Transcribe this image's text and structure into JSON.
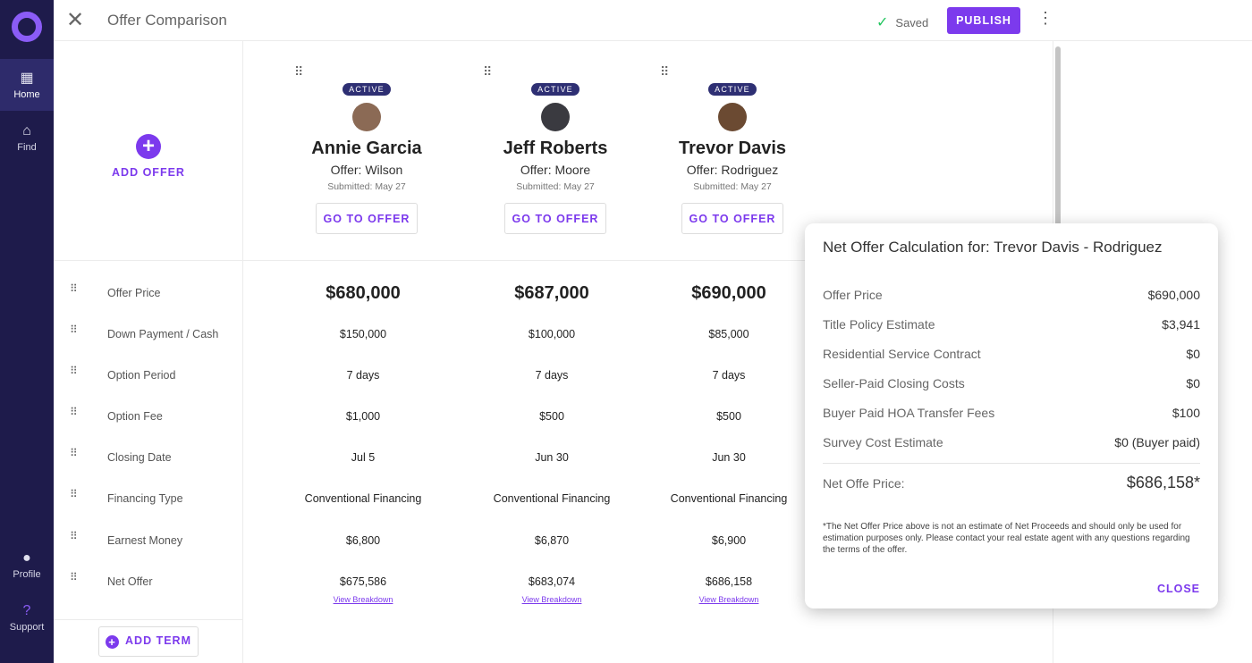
{
  "sidebar": {
    "items": [
      {
        "label": "Home",
        "icon": "dashboard-icon"
      },
      {
        "label": "Find",
        "icon": "house-search-icon"
      },
      {
        "label": "Profile",
        "icon": "person-icon"
      },
      {
        "label": "Support",
        "icon": "help-icon"
      }
    ]
  },
  "header": {
    "title": "Offer Comparison",
    "saved": "Saved",
    "publish": "PUBLISH"
  },
  "add_offer": "ADD OFFER",
  "add_term": "ADD TERM",
  "offers": [
    {
      "badge": "ACTIVE",
      "name": "Annie Garcia",
      "offer": "Offer: Wilson",
      "submitted": "Submitted: May 27",
      "button": "GO TO OFFER",
      "avatar_color": "#8b6a55"
    },
    {
      "badge": "ACTIVE",
      "name": "Jeff Roberts",
      "offer": "Offer: Moore",
      "submitted": "Submitted: May 27",
      "button": "GO TO OFFER",
      "avatar_color": "#3a3a40"
    },
    {
      "badge": "ACTIVE",
      "name": "Trevor Davis",
      "offer": "Offer: Rodriguez",
      "submitted": "Submitted: May 27",
      "button": "GO TO OFFER",
      "avatar_color": "#6b4a32"
    }
  ],
  "terms": [
    "Offer Price",
    "Down Payment / Cash",
    "Option Period",
    "Option Fee",
    "Closing Date",
    "Financing Type",
    "Earnest Money",
    "Net Offer"
  ],
  "values": [
    [
      "$680,000",
      "$150,000",
      "7 days",
      "$1,000",
      "Jul 5",
      "Conventional Financing",
      "$6,800",
      "$675,586"
    ],
    [
      "$687,000",
      "$100,000",
      "7 days",
      "$500",
      "Jun 30",
      "Conventional Financing",
      "$6,870",
      "$683,074"
    ],
    [
      "$690,000",
      "$85,000",
      "7 days",
      "$500",
      "Jun 30",
      "Conventional Financing",
      "$6,900",
      "$686,158"
    ]
  ],
  "view_breakdown": "View Breakdown",
  "modal": {
    "title": "Net Offer Calculation for: Trevor Davis - Rodriguez",
    "rows": [
      {
        "label": "Offer Price",
        "value": "$690,000"
      },
      {
        "label": "Title Policy Estimate",
        "value": "$3,941"
      },
      {
        "label": "Residential Service Contract",
        "value": "$0"
      },
      {
        "label": "Seller-Paid Closing Costs",
        "value": "$0"
      },
      {
        "label": "Buyer Paid HOA Transfer Fees",
        "value": "$100"
      },
      {
        "label": "Survey Cost Estimate",
        "value": "$0 (Buyer paid)"
      }
    ],
    "net_label": "Net Offe Price:",
    "net_value": "$686,158*",
    "note": "*The Net Offer Price above is not an estimate of Net Proceeds and should only be used for estimation purposes only. Please contact your real estate agent with any questions regarding the terms of the offer.",
    "close": "CLOSE"
  },
  "colors": {
    "accent": "#7c3aed",
    "sidebar": "#1e1b4b",
    "badge": "#2e2f73"
  }
}
